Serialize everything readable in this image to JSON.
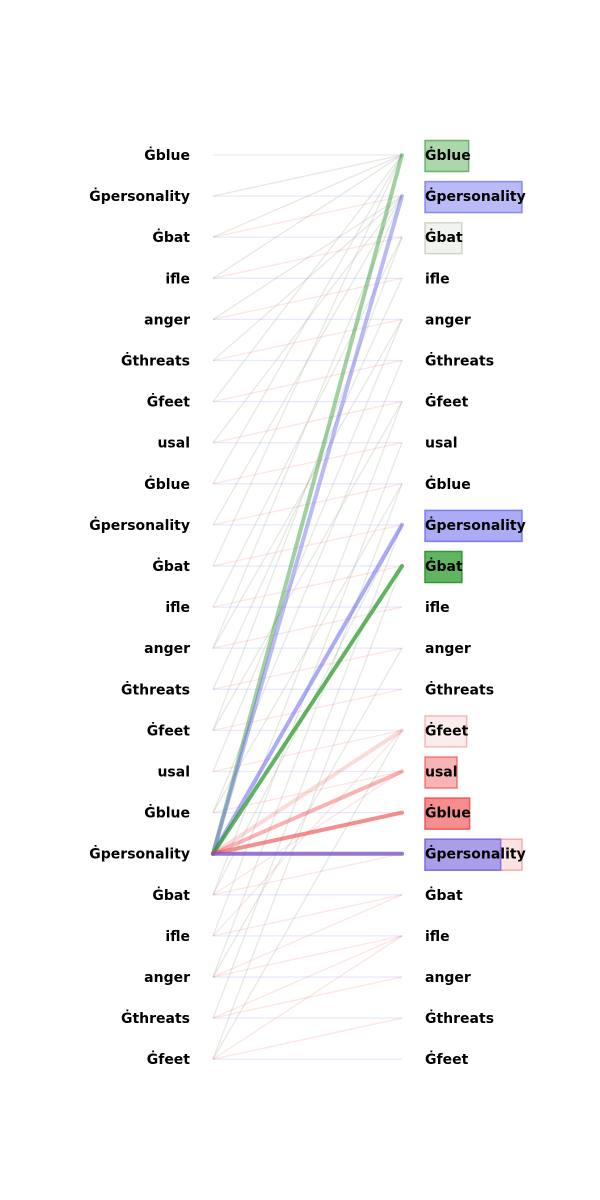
{
  "left_tokens": [
    "Ġblue",
    "Ġpersonality",
    "Ġbat",
    "ifle",
    "anger",
    "Ġthreats",
    "Ġfeet",
    "usal",
    "Ġblue",
    "Ġpersonality",
    "Ġbat",
    "ifle",
    "anger",
    "Ġthreats",
    "Ġfeet",
    "usal",
    "Ġblue",
    "Ġpersonality",
    "Ġbat",
    "ifle",
    "anger",
    "Ġthreats",
    "Ġfeet"
  ],
  "right_tokens": [
    "Ġblue",
    "Ġpersonality",
    "Ġbat",
    "ifle",
    "anger",
    "Ġthreats",
    "Ġfeet",
    "usal",
    "Ġblue",
    "Ġpersonality",
    "Ġbat",
    "ifle",
    "anger",
    "Ġthreats",
    "Ġfeet",
    "usal",
    "Ġblue",
    "Ġpersonality",
    "Ġbat",
    "ifle",
    "anger",
    "Ġthreats",
    "Ġfeet"
  ],
  "colors": {
    "green": "#2e9a2e",
    "blue": "#6666ee",
    "red": "#ee4444",
    "gray": "#8a9a7a",
    "purple": "#7a55cc"
  },
  "focus_source_index": 17,
  "highlight_links": [
    {
      "to": 0,
      "color": "green",
      "weight": 0.45
    },
    {
      "to": 1,
      "color": "blue",
      "weight": 0.45
    },
    {
      "to": 9,
      "color": "blue",
      "weight": 0.55
    },
    {
      "to": 10,
      "color": "green",
      "weight": 0.75
    },
    {
      "to": 14,
      "color": "red",
      "weight": 0.2
    },
    {
      "to": 15,
      "color": "red",
      "weight": 0.4
    },
    {
      "to": 16,
      "color": "red",
      "weight": 0.6
    },
    {
      "to": 17,
      "color": "purple",
      "weight": 0.8
    }
  ],
  "right_bars": [
    {
      "index": 0,
      "color": "green",
      "value": 0.45,
      "opacity": 0.4
    },
    {
      "index": 1,
      "color": "blue",
      "value": 1.0,
      "opacity": 0.45
    },
    {
      "index": 2,
      "color": "gray",
      "value": 0.38,
      "opacity": 0.12
    },
    {
      "index": 9,
      "color": "blue",
      "value": 1.0,
      "opacity": 0.55
    },
    {
      "index": 10,
      "color": "green",
      "value": 0.38,
      "opacity": 0.75
    },
    {
      "index": 14,
      "color": "red",
      "value": 0.43,
      "opacity": 0.1
    },
    {
      "index": 15,
      "color": "red",
      "value": 0.33,
      "opacity": 0.4
    },
    {
      "index": 16,
      "color": "red",
      "value": 0.46,
      "opacity": 0.6
    },
    {
      "index": 17,
      "color": "red",
      "value": 1.0,
      "opacity": 0.15
    },
    {
      "index": 17,
      "color": "blue",
      "value": 0.78,
      "opacity": 0.55
    }
  ],
  "faint_links": [
    {
      "from": 0,
      "to": 0,
      "color": "purple"
    },
    {
      "from": 1,
      "to": 0,
      "color": "gray"
    },
    {
      "from": 2,
      "to": 0,
      "color": "gray"
    },
    {
      "from": 1,
      "to": 1,
      "color": "blue"
    },
    {
      "from": 2,
      "to": 2,
      "color": "blue"
    },
    {
      "from": 3,
      "to": 3,
      "color": "blue"
    },
    {
      "from": 4,
      "to": 4,
      "color": "blue"
    },
    {
      "from": 5,
      "to": 5,
      "color": "blue"
    },
    {
      "from": 6,
      "to": 6,
      "color": "blue"
    },
    {
      "from": 7,
      "to": 7,
      "color": "blue"
    },
    {
      "from": 8,
      "to": 8,
      "color": "blue"
    },
    {
      "from": 9,
      "to": 9,
      "color": "blue"
    },
    {
      "from": 10,
      "to": 10,
      "color": "blue"
    },
    {
      "from": 11,
      "to": 11,
      "color": "blue"
    },
    {
      "from": 12,
      "to": 12,
      "color": "blue"
    },
    {
      "from": 13,
      "to": 13,
      "color": "blue"
    },
    {
      "from": 14,
      "to": 14,
      "color": "blue"
    },
    {
      "from": 15,
      "to": 15,
      "color": "blue"
    },
    {
      "from": 16,
      "to": 16,
      "color": "blue"
    },
    {
      "from": 18,
      "to": 18,
      "color": "blue"
    },
    {
      "from": 19,
      "to": 19,
      "color": "blue"
    },
    {
      "from": 20,
      "to": 20,
      "color": "blue"
    },
    {
      "from": 21,
      "to": 21,
      "color": "blue"
    },
    {
      "from": 22,
      "to": 22,
      "color": "blue"
    },
    {
      "from": 2,
      "to": 1,
      "color": "red"
    },
    {
      "from": 3,
      "to": 2,
      "color": "red"
    },
    {
      "from": 4,
      "to": 3,
      "color": "red"
    },
    {
      "from": 5,
      "to": 4,
      "color": "red"
    },
    {
      "from": 6,
      "to": 5,
      "color": "red"
    },
    {
      "from": 7,
      "to": 6,
      "color": "red"
    },
    {
      "from": 8,
      "to": 7,
      "color": "red"
    },
    {
      "from": 9,
      "to": 8,
      "color": "red"
    },
    {
      "from": 10,
      "to": 9,
      "color": "red"
    },
    {
      "from": 11,
      "to": 10,
      "color": "red"
    },
    {
      "from": 12,
      "to": 11,
      "color": "red"
    },
    {
      "from": 13,
      "to": 12,
      "color": "red"
    },
    {
      "from": 14,
      "to": 13,
      "color": "red"
    },
    {
      "from": 15,
      "to": 14,
      "color": "red"
    },
    {
      "from": 16,
      "to": 15,
      "color": "red"
    },
    {
      "from": 18,
      "to": 17,
      "color": "red"
    },
    {
      "from": 19,
      "to": 18,
      "color": "red"
    },
    {
      "from": 20,
      "to": 19,
      "color": "red"
    },
    {
      "from": 21,
      "to": 20,
      "color": "red"
    },
    {
      "from": 22,
      "to": 21,
      "color": "red"
    },
    {
      "from": 3,
      "to": 0,
      "color": "gray"
    },
    {
      "from": 4,
      "to": 1,
      "color": "gray"
    },
    {
      "from": 5,
      "to": 1,
      "color": "gray"
    },
    {
      "from": 6,
      "to": 0,
      "color": "gray"
    },
    {
      "from": 7,
      "to": 1,
      "color": "gray"
    },
    {
      "from": 8,
      "to": 0,
      "color": "gray"
    },
    {
      "from": 9,
      "to": 1,
      "color": "gray"
    },
    {
      "from": 10,
      "to": 0,
      "color": "gray"
    },
    {
      "from": 11,
      "to": 2,
      "color": "gray"
    },
    {
      "from": 12,
      "to": 1,
      "color": "gray"
    },
    {
      "from": 13,
      "to": 3,
      "color": "gray"
    },
    {
      "from": 14,
      "to": 2,
      "color": "gray"
    },
    {
      "from": 15,
      "to": 4,
      "color": "gray"
    },
    {
      "from": 16,
      "to": 5,
      "color": "gray"
    },
    {
      "from": 18,
      "to": 6,
      "color": "gray"
    },
    {
      "from": 19,
      "to": 7,
      "color": "gray"
    },
    {
      "from": 20,
      "to": 8,
      "color": "gray"
    },
    {
      "from": 21,
      "to": 9,
      "color": "gray"
    },
    {
      "from": 22,
      "to": 10,
      "color": "gray"
    },
    {
      "from": 12,
      "to": 4,
      "color": "gray"
    },
    {
      "from": 14,
      "to": 6,
      "color": "gray"
    },
    {
      "from": 16,
      "to": 8,
      "color": "gray"
    },
    {
      "from": 18,
      "to": 9,
      "color": "gray"
    },
    {
      "from": 20,
      "to": 12,
      "color": "gray"
    },
    {
      "from": 22,
      "to": 14,
      "color": "gray"
    },
    {
      "from": 21,
      "to": 19,
      "color": "red"
    },
    {
      "from": 22,
      "to": 19,
      "color": "red"
    },
    {
      "from": 20,
      "to": 18,
      "color": "red"
    },
    {
      "from": 19,
      "to": 14,
      "color": "red"
    },
    {
      "from": 18,
      "to": 15,
      "color": "red"
    }
  ]
}
